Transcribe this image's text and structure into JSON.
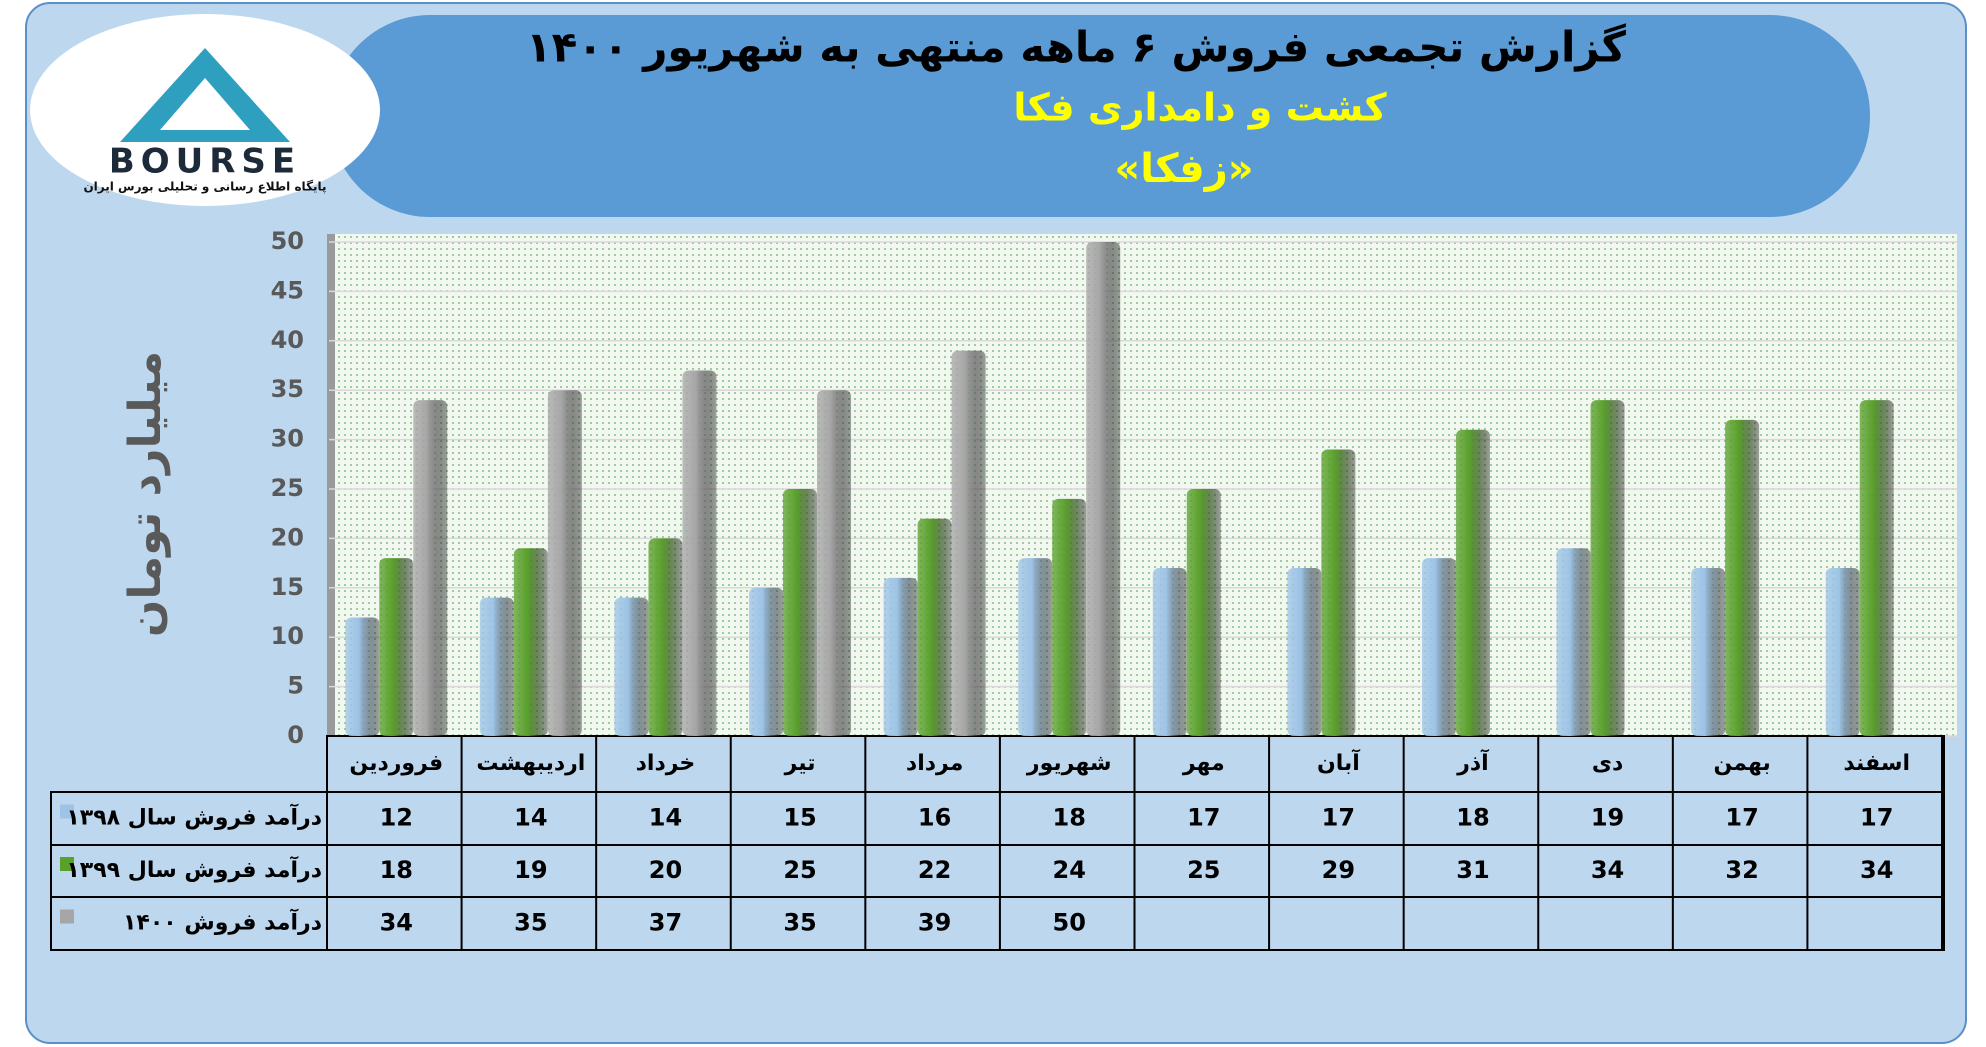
{
  "logo": {
    "text": "BOURSE",
    "caption": "پایگاه اطلاع رسانی و تحلیلی بورس ایران"
  },
  "chart_data": {
    "type": "bar",
    "title": "گزارش تجمعی فروش ۶ ماهه منتهی به شهریور ۱۴۰۰",
    "subtitle": "کشت و دامداری فکا",
    "ticker": "«زفکا»",
    "y_label": "میلیارد تومان",
    "categories": [
      "فروردین",
      "اردیبهشت",
      "خرداد",
      "تیر",
      "مرداد",
      "شهریور",
      "مهر",
      "آبان",
      "آذر",
      "دی",
      "بهمن",
      "اسفند"
    ],
    "series": [
      {
        "name": "درآمد فروش سال ۱۳۹۸",
        "color": "#9dc3e6",
        "values": [
          12,
          14,
          14,
          15,
          16,
          18,
          17,
          17,
          18,
          19,
          17,
          17
        ]
      },
      {
        "name": "درآمد فروش سال ۱۳۹۹",
        "color": "#5aa02c",
        "values": [
          18,
          19,
          20,
          25,
          22,
          24,
          25,
          29,
          31,
          34,
          32,
          34
        ]
      },
      {
        "name": "درآمد فروش ۱۴۰۰",
        "color": "#a6a6a6",
        "values": [
          34,
          35,
          37,
          35,
          39,
          50,
          null,
          null,
          null,
          null,
          null,
          null
        ]
      }
    ],
    "ylim": [
      0,
      50
    ],
    "yticks": [
      0,
      5,
      10,
      15,
      20,
      25,
      30,
      35,
      40,
      45,
      50
    ],
    "grid": true
  }
}
